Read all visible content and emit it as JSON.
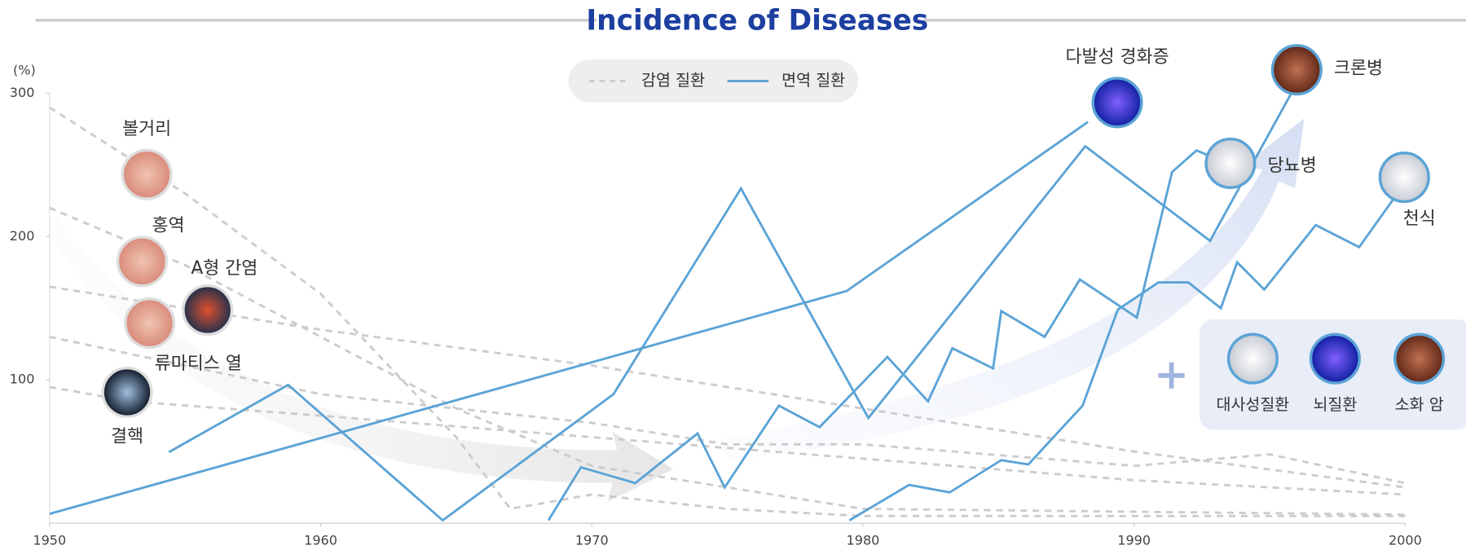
{
  "chart_data": {
    "type": "line",
    "title": "Incidence of Diseases",
    "y_unit": "(%)",
    "xlim": [
      1950,
      2000
    ],
    "xticks": [
      1950,
      1960,
      1970,
      1980,
      1990,
      2000
    ],
    "ylim": [
      0,
      300
    ],
    "yticks": [
      100,
      200,
      300
    ],
    "series": [
      {
        "name": "감염 질환",
        "color": "#cccccc",
        "dashed": true,
        "lines": [
          {
            "x": [
              1950,
              1955,
              1960,
              1965,
              1967,
              1970,
              1975,
              1980,
              1990,
              2000
            ],
            "values": [
              290,
              230,
              160,
              60,
              10,
              20,
              10,
              5,
              5,
              5
            ]
          },
          {
            "x": [
              1950,
              1955,
              1960,
              1965,
              1970,
              1975,
              1980,
              1990,
              2000
            ],
            "values": [
              220,
              180,
              130,
              80,
              40,
              25,
              10,
              8,
              6
            ]
          },
          {
            "x": [
              1950,
              1955,
              1960,
              1970,
              1980,
              1990,
              2000
            ],
            "values": [
              165,
              150,
              135,
              110,
              80,
              50,
              25
            ]
          },
          {
            "x": [
              1950,
              1955,
              1960,
              1970,
              1975,
              1980,
              1990,
              1995,
              2000
            ],
            "values": [
              130,
              110,
              90,
              70,
              55,
              55,
              40,
              48,
              28
            ]
          },
          {
            "x": [
              1950,
              1953,
              1960,
              1970,
              1980,
              1990,
              2000
            ],
            "values": [
              95,
              85,
              75,
              60,
              45,
              30,
              20
            ]
          }
        ]
      },
      {
        "name": "면역 질환",
        "color": "#5ba3d6",
        "dashed": false,
        "lines": [
          {
            "x": [
              1950,
              1979.4,
              1988.3
            ],
            "values": [
              6.5,
              162,
              280
            ]
          },
          {
            "x": [
              1954.4,
              1958.8,
              1964.5,
              1970.8,
              1975.5,
              1980.2,
              1988.2,
              1992.8,
              1995.8
            ],
            "values": [
              49.6,
              96.5,
              2,
              90,
              233.5,
              73.4,
              263,
              197,
              300
            ]
          },
          {
            "x": [
              1968.4,
              1969.6,
              1971.6,
              1973.9,
              1974.9,
              1976.9,
              1978.4,
              1980.9,
              1982.4,
              1983.3,
              1984.8,
              1985.1,
              1986.7,
              1988.0,
              1990.1,
              1991.4,
              1992.3,
              1993.6
            ],
            "values": [
              2,
              39,
              28,
              62.6,
              25,
              82,
              67,
              116,
              85,
              122,
              108,
              148,
              130,
              170,
              143.5,
              245,
              260,
              250
            ]
          },
          {
            "x": [
              1979.5,
              1981.7,
              1983.2,
              1985.1,
              1986.1,
              1988.1,
              1989.4,
              1990.9,
              1992.0,
              1993.2,
              1993.8,
              1994.8,
              1996.7,
              1998.3,
              1999.6
            ],
            "values": [
              2,
              26.7,
              21.5,
              44,
              41,
              82,
              149,
              168,
              168,
              150,
              182,
              163,
              208,
              192.6,
              227
            ]
          }
        ]
      }
    ],
    "annotations": [
      "볼거리",
      "홍역",
      "A형 간염",
      "류마티스 열",
      "결핵",
      "다발성 경화증",
      "크론병",
      "당뇨병",
      "천식"
    ],
    "other_diseases": [
      "대사성질환",
      "뇌질환",
      "소화 암"
    ]
  }
}
